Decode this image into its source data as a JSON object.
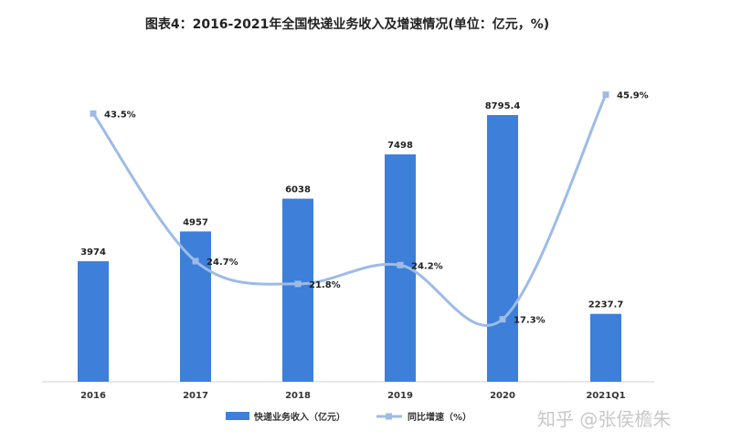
{
  "chart_data": {
    "type": "bar",
    "title": "图表4：2016-2021年全国快递业务收入及增速情况(单位：亿元，%)",
    "categories": [
      "2016",
      "2017",
      "2018",
      "2019",
      "2020",
      "2021Q1"
    ],
    "series": [
      {
        "name": "快递业务收入（亿元）",
        "type": "bar",
        "axis": "left",
        "values": [
          3974,
          4957,
          6038,
          7498,
          8795.4,
          2237.7
        ],
        "labels": [
          "3974",
          "4957",
          "6038",
          "7498",
          "8795.4",
          "2237.7"
        ],
        "color": "#3d7fd9"
      },
      {
        "name": "同比增速（%）",
        "type": "line",
        "axis": "right",
        "values": [
          43.5,
          24.7,
          21.8,
          24.2,
          17.3,
          45.9
        ],
        "labels": [
          "43.5%",
          "24.7%",
          "21.8%",
          "24.2%",
          "17.3%",
          "45.9%"
        ],
        "color": "#9dbbe6"
      }
    ],
    "ylim_left": [
      0,
      10000
    ],
    "ylim_right": [
      0,
      50
    ],
    "grid": false,
    "legend_position": "bottom"
  },
  "watermark": "知乎 @张侯檐朱"
}
